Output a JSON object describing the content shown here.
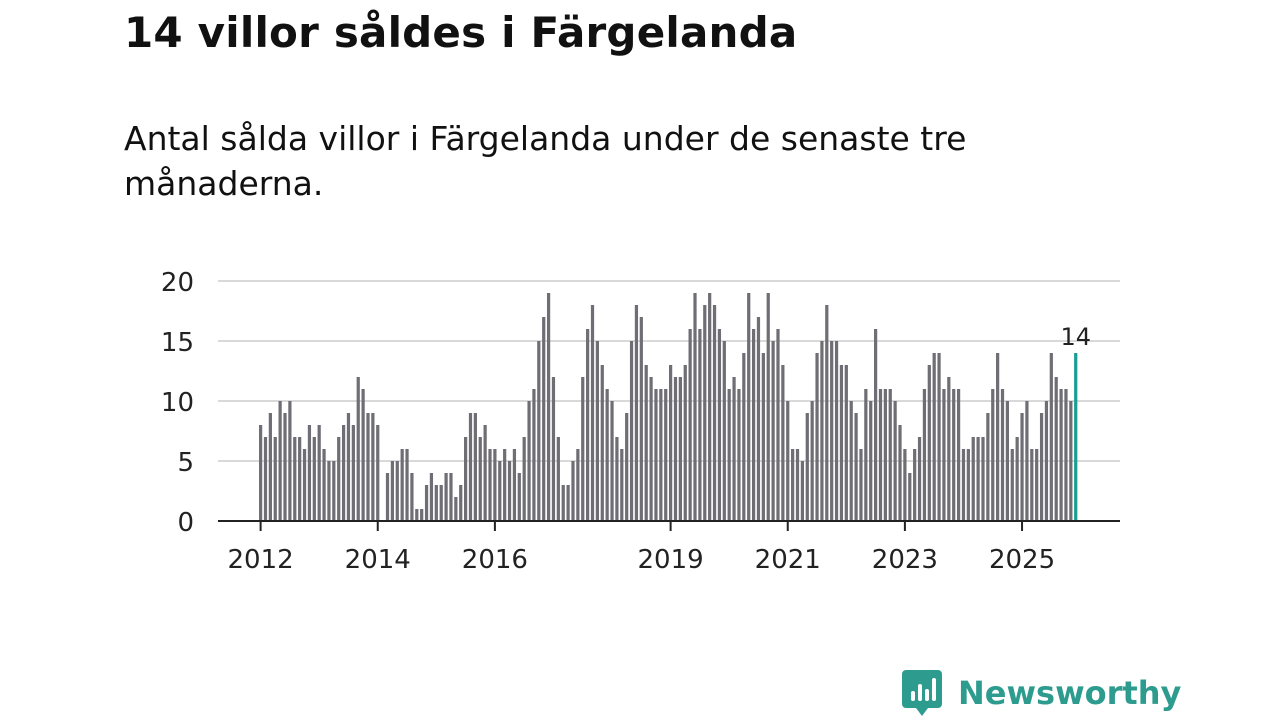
{
  "title": "14 villor såldes i Färgelanda",
  "subtitle": "Antal sålda villor i Färgelanda under de senaste tre månaderna.",
  "brand": {
    "name": "Newsworthy",
    "icon": "newsworthy-logo-icon"
  },
  "colors": {
    "bar": "#6f6e75",
    "highlight": "#1a9e94",
    "grid": "#d9d9d9",
    "axis": "#222222",
    "brand": "#2d9c8f"
  },
  "chart_data": {
    "type": "bar",
    "title": "",
    "xlabel": "",
    "ylabel": "",
    "ylim": [
      0,
      20
    ],
    "yticks": [
      "0",
      "5",
      "10",
      "15",
      "20"
    ],
    "start": "2012-01",
    "xtick_labels": [
      "2012",
      "2014",
      "2016",
      "2019",
      "2021",
      "2023",
      "2025"
    ],
    "values": [
      8,
      7,
      9,
      7,
      10,
      9,
      10,
      7,
      7,
      6,
      8,
      7,
      8,
      6,
      5,
      5,
      7,
      8,
      9,
      8,
      12,
      11,
      9,
      9,
      8,
      0,
      4,
      5,
      5,
      6,
      6,
      4,
      1,
      1,
      3,
      4,
      3,
      3,
      4,
      4,
      2,
      3,
      7,
      9,
      9,
      7,
      8,
      6,
      6,
      5,
      6,
      5,
      6,
      4,
      7,
      10,
      11,
      15,
      17,
      19,
      12,
      7,
      3,
      3,
      5,
      6,
      12,
      16,
      18,
      15,
      13,
      11,
      10,
      7,
      6,
      9,
      15,
      18,
      17,
      13,
      12,
      11,
      11,
      11,
      13,
      12,
      12,
      13,
      16,
      19,
      16,
      18,
      19,
      18,
      16,
      15,
      11,
      12,
      11,
      14,
      19,
      16,
      17,
      14,
      19,
      15,
      16,
      13,
      10,
      6,
      6,
      5,
      9,
      10,
      14,
      15,
      18,
      15,
      15,
      13,
      13,
      10,
      9,
      6,
      11,
      10,
      16,
      11,
      11,
      11,
      10,
      8,
      6,
      4,
      6,
      7,
      11,
      13,
      14,
      14,
      11,
      12,
      11,
      11,
      6,
      6,
      7,
      7,
      7,
      9,
      11,
      14,
      11,
      10,
      6,
      7,
      9,
      10,
      6,
      6,
      9,
      10,
      14,
      12,
      11,
      11,
      10,
      14
    ],
    "highlight_label": "14"
  }
}
